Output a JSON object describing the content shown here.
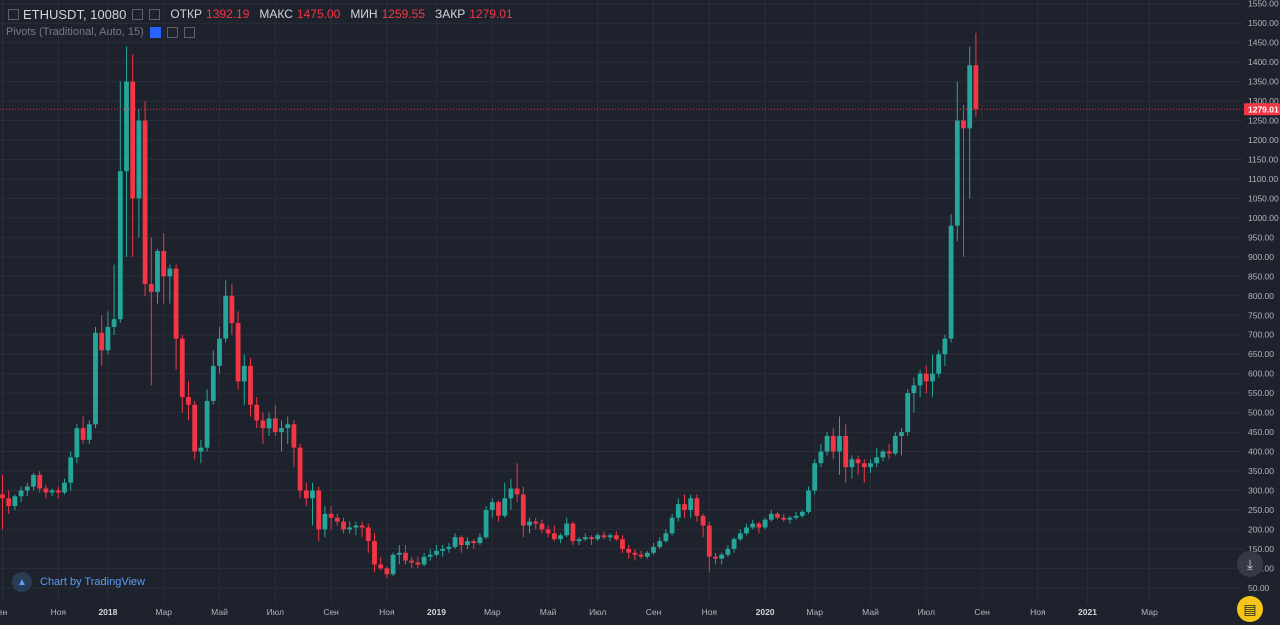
{
  "legend": {
    "symbol": "ETHUSDT, 10080",
    "open_label": "ОТКР",
    "open": "1392.19",
    "high_label": "МАКС",
    "high": "1475.00",
    "low_label": "МИН",
    "low": "1259.55",
    "close_label": "ЗАКР",
    "close": "1279.01",
    "indicator": "Pivots (Traditional, Auto, 15)"
  },
  "badge": {
    "text": "Chart by TradingView",
    "icon": "tradingview-logo-icon"
  },
  "buttons": {
    "scroll": "arrow-down-icon",
    "chat": "chat-icon"
  },
  "colors": {
    "background": "#1e222d",
    "up": "#26a69a",
    "down": "#f23645",
    "grid": "#2a2e39",
    "axis_text": "#b2b5be",
    "price_line": "#f23645"
  },
  "chart_data": {
    "type": "candlestick",
    "symbol": "ETHUSDT",
    "interval": "10080",
    "y_ticks": [
      50,
      100,
      150,
      200,
      250,
      300,
      350,
      400,
      450,
      500,
      550,
      600,
      650,
      700,
      750,
      800,
      850,
      900,
      950,
      1000,
      1050,
      1100,
      1150,
      1200,
      1250,
      1300,
      1350,
      1400,
      1450,
      1500,
      1550
    ],
    "ylim": [
      50,
      1550
    ],
    "x_ticks": [
      {
        "label": "ен",
        "week": 0
      },
      {
        "label": "Ноя",
        "week": 9
      },
      {
        "label": "2018",
        "week": 17,
        "bold": true
      },
      {
        "label": "Мар",
        "week": 26
      },
      {
        "label": "Май",
        "week": 35
      },
      {
        "label": "Июл",
        "week": 44
      },
      {
        "label": "Сен",
        "week": 53
      },
      {
        "label": "Ноя",
        "week": 62
      },
      {
        "label": "2019",
        "week": 70,
        "bold": true
      },
      {
        "label": "Мар",
        "week": 79
      },
      {
        "label": "Май",
        "week": 88
      },
      {
        "label": "Июл",
        "week": 96
      },
      {
        "label": "Сен",
        "week": 105
      },
      {
        "label": "Ноя",
        "week": 114
      },
      {
        "label": "2020",
        "week": 123,
        "bold": true
      },
      {
        "label": "Мар",
        "week": 131
      },
      {
        "label": "Май",
        "week": 140
      },
      {
        "label": "Июл",
        "week": 149
      },
      {
        "label": "Сен",
        "week": 158
      },
      {
        "label": "Ноя",
        "week": 167
      },
      {
        "label": "2021",
        "week": 175,
        "bold": true
      },
      {
        "label": "Мар",
        "week": 185
      }
    ],
    "last_price": 1279.01,
    "ohlc": [
      [
        290,
        340,
        200,
        280
      ],
      [
        280,
        300,
        240,
        260
      ],
      [
        260,
        290,
        250,
        285
      ],
      [
        285,
        310,
        270,
        300
      ],
      [
        300,
        320,
        285,
        310
      ],
      [
        310,
        345,
        300,
        340
      ],
      [
        340,
        350,
        295,
        305
      ],
      [
        305,
        315,
        280,
        295
      ],
      [
        295,
        305,
        285,
        300
      ],
      [
        300,
        310,
        280,
        295
      ],
      [
        295,
        330,
        290,
        320
      ],
      [
        320,
        400,
        300,
        385
      ],
      [
        385,
        470,
        370,
        460
      ],
      [
        460,
        490,
        420,
        430
      ],
      [
        430,
        480,
        420,
        470
      ],
      [
        470,
        720,
        460,
        705
      ],
      [
        705,
        750,
        620,
        660
      ],
      [
        660,
        760,
        650,
        720
      ],
      [
        720,
        880,
        700,
        740
      ],
      [
        740,
        1350,
        730,
        1120
      ],
      [
        1120,
        1440,
        900,
        1350
      ],
      [
        1350,
        1420,
        900,
        1050
      ],
      [
        1050,
        1280,
        950,
        1250
      ],
      [
        1250,
        1300,
        800,
        830
      ],
      [
        830,
        950,
        570,
        810
      ],
      [
        810,
        920,
        780,
        915
      ],
      [
        915,
        960,
        780,
        850
      ],
      [
        850,
        880,
        780,
        870
      ],
      [
        870,
        880,
        610,
        690
      ],
      [
        690,
        700,
        500,
        540
      ],
      [
        540,
        580,
        480,
        520
      ],
      [
        520,
        530,
        380,
        400
      ],
      [
        400,
        430,
        370,
        410
      ],
      [
        410,
        560,
        400,
        530
      ],
      [
        530,
        660,
        520,
        620
      ],
      [
        620,
        720,
        600,
        690
      ],
      [
        690,
        840,
        680,
        800
      ],
      [
        800,
        830,
        700,
        730
      ],
      [
        730,
        760,
        560,
        580
      ],
      [
        580,
        650,
        520,
        620
      ],
      [
        620,
        640,
        490,
        520
      ],
      [
        520,
        540,
        460,
        480
      ],
      [
        480,
        500,
        420,
        460
      ],
      [
        460,
        500,
        440,
        485
      ],
      [
        485,
        520,
        440,
        450
      ],
      [
        450,
        480,
        400,
        460
      ],
      [
        460,
        490,
        420,
        470
      ],
      [
        470,
        480,
        360,
        410
      ],
      [
        410,
        420,
        280,
        300
      ],
      [
        300,
        320,
        260,
        280
      ],
      [
        280,
        320,
        210,
        300
      ],
      [
        300,
        310,
        170,
        200
      ],
      [
        200,
        260,
        180,
        240
      ],
      [
        240,
        260,
        200,
        230
      ],
      [
        230,
        240,
        210,
        220
      ],
      [
        220,
        230,
        190,
        200
      ],
      [
        200,
        220,
        190,
        205
      ],
      [
        205,
        220,
        185,
        210
      ],
      [
        210,
        220,
        180,
        205
      ],
      [
        205,
        215,
        140,
        170
      ],
      [
        170,
        190,
        90,
        110
      ],
      [
        110,
        130,
        95,
        100
      ],
      [
        100,
        105,
        75,
        85
      ],
      [
        85,
        140,
        80,
        135
      ],
      [
        135,
        160,
        110,
        140
      ],
      [
        140,
        160,
        110,
        120
      ],
      [
        120,
        130,
        100,
        115
      ],
      [
        115,
        130,
        100,
        110
      ],
      [
        110,
        140,
        105,
        130
      ],
      [
        130,
        150,
        120,
        135
      ],
      [
        135,
        160,
        130,
        145
      ],
      [
        145,
        160,
        130,
        150
      ],
      [
        150,
        165,
        140,
        155
      ],
      [
        155,
        190,
        150,
        180
      ],
      [
        180,
        185,
        140,
        160
      ],
      [
        160,
        180,
        150,
        170
      ],
      [
        170,
        175,
        150,
        165
      ],
      [
        165,
        190,
        160,
        180
      ],
      [
        180,
        260,
        175,
        250
      ],
      [
        250,
        280,
        230,
        270
      ],
      [
        270,
        275,
        220,
        235
      ],
      [
        235,
        320,
        230,
        280
      ],
      [
        280,
        330,
        250,
        305
      ],
      [
        305,
        370,
        270,
        290
      ],
      [
        290,
        310,
        180,
        210
      ],
      [
        210,
        230,
        190,
        220
      ],
      [
        220,
        230,
        200,
        215
      ],
      [
        215,
        225,
        190,
        200
      ],
      [
        200,
        210,
        180,
        190
      ],
      [
        190,
        210,
        170,
        175
      ],
      [
        175,
        190,
        165,
        185
      ],
      [
        185,
        230,
        180,
        215
      ],
      [
        215,
        220,
        160,
        170
      ],
      [
        170,
        180,
        160,
        175
      ],
      [
        175,
        190,
        170,
        180
      ],
      [
        180,
        185,
        160,
        175
      ],
      [
        175,
        190,
        170,
        185
      ],
      [
        185,
        195,
        175,
        180
      ],
      [
        180,
        190,
        170,
        185
      ],
      [
        185,
        195,
        170,
        175
      ],
      [
        175,
        185,
        140,
        150
      ],
      [
        150,
        160,
        125,
        140
      ],
      [
        140,
        150,
        120,
        135
      ],
      [
        135,
        145,
        125,
        130
      ],
      [
        130,
        145,
        125,
        140
      ],
      [
        140,
        165,
        135,
        155
      ],
      [
        155,
        180,
        150,
        170
      ],
      [
        170,
        200,
        165,
        190
      ],
      [
        190,
        240,
        185,
        230
      ],
      [
        230,
        280,
        220,
        265
      ],
      [
        265,
        290,
        230,
        250
      ],
      [
        250,
        290,
        230,
        280
      ],
      [
        280,
        290,
        220,
        235
      ],
      [
        235,
        240,
        180,
        210
      ],
      [
        210,
        220,
        90,
        130
      ],
      [
        130,
        140,
        110,
        125
      ],
      [
        125,
        140,
        110,
        135
      ],
      [
        135,
        160,
        130,
        150
      ],
      [
        150,
        180,
        140,
        175
      ],
      [
        175,
        200,
        170,
        190
      ],
      [
        190,
        215,
        185,
        205
      ],
      [
        205,
        225,
        200,
        215
      ],
      [
        215,
        220,
        190,
        205
      ],
      [
        205,
        230,
        200,
        225
      ],
      [
        225,
        250,
        220,
        240
      ],
      [
        240,
        245,
        225,
        230
      ],
      [
        230,
        240,
        220,
        225
      ],
      [
        225,
        235,
        215,
        230
      ],
      [
        230,
        245,
        225,
        235
      ],
      [
        235,
        250,
        230,
        245
      ],
      [
        245,
        310,
        240,
        300
      ],
      [
        300,
        380,
        290,
        370
      ],
      [
        370,
        420,
        360,
        400
      ],
      [
        400,
        450,
        390,
        440
      ],
      [
        440,
        460,
        380,
        400
      ],
      [
        400,
        490,
        340,
        440
      ],
      [
        440,
        470,
        320,
        360
      ],
      [
        360,
        390,
        330,
        380
      ],
      [
        380,
        390,
        340,
        370
      ],
      [
        370,
        380,
        320,
        360
      ],
      [
        360,
        380,
        345,
        370
      ],
      [
        370,
        410,
        360,
        385
      ],
      [
        385,
        405,
        375,
        400
      ],
      [
        400,
        420,
        380,
        395
      ],
      [
        395,
        450,
        390,
        440
      ],
      [
        440,
        460,
        390,
        450
      ],
      [
        450,
        560,
        440,
        550
      ],
      [
        550,
        590,
        500,
        570
      ],
      [
        570,
        610,
        540,
        600
      ],
      [
        600,
        620,
        550,
        580
      ],
      [
        580,
        650,
        540,
        600
      ],
      [
        600,
        660,
        590,
        650
      ],
      [
        650,
        700,
        620,
        690
      ],
      [
        690,
        1010,
        680,
        980
      ],
      [
        980,
        1350,
        940,
        1250
      ],
      [
        1250,
        1290,
        900,
        1230
      ],
      [
        1230,
        1440,
        1050,
        1392.19
      ],
      [
        1392.19,
        1475,
        1259.55,
        1279.01
      ]
    ]
  }
}
